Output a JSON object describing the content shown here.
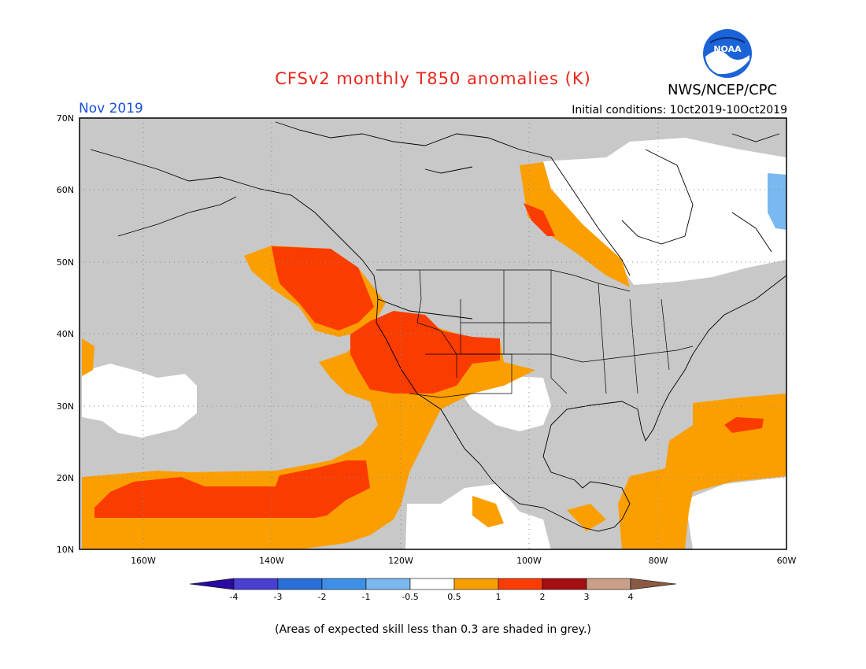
{
  "header": {
    "title": "CFSv2 monthly T850 anomalies (K)",
    "month": "Nov 2019",
    "initial_conditions": "Initial conditions: 10ct2019-10Oct2019",
    "agency": "NWS/NCEP/CPC",
    "logo_text": "NOAA"
  },
  "axes": {
    "lat_labels": [
      "70N",
      "60N",
      "50N",
      "40N",
      "30N",
      "20N",
      "10N"
    ],
    "lon_labels": [
      "160W",
      "140W",
      "120W",
      "100W",
      "80W",
      "60W"
    ]
  },
  "colorbar": {
    "labels": [
      "-4",
      "-3",
      "-2",
      "-1",
      "-0.5",
      "0.5",
      "1",
      "2",
      "3",
      "4"
    ],
    "colors": [
      "#2a0aa0",
      "#4a3fd0",
      "#2a6fd8",
      "#3f8fe6",
      "#7ab8f0",
      "#ffffff",
      "#fb9f00",
      "#fb3c00",
      "#a50f15",
      "#c8a08a",
      "#8a5a44"
    ]
  },
  "colors": {
    "grey": "#c8c8c8",
    "white": "#ffffff",
    "orange": "#fb9f00",
    "red": "#fb3c00",
    "blue": "#7ab8f0"
  },
  "footnote": "(Areas of expected skill less than 0.3 are shaded in grey.)"
}
